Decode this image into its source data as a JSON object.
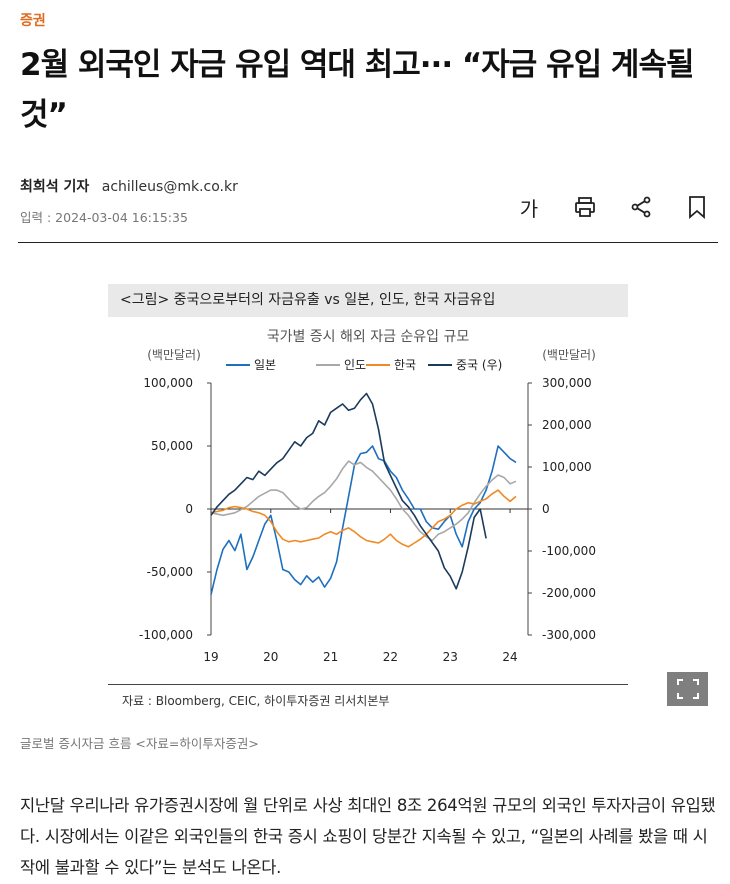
{
  "article": {
    "category": "증권",
    "headline": "2월 외국인 자금 유입 역대 최고··· “자금 유입 계속될 것”",
    "author": "최희석 기자",
    "email": "achilleus@mk.co.kr",
    "date_line": "입력 : 2024-03-04 16:15:35",
    "toolbar": {
      "font_size_label": "가",
      "icons": [
        "print-icon",
        "share-icon",
        "bookmark-icon"
      ]
    },
    "caption": "글로벌 증시자금 흐름 <자료=하이투자증권>",
    "body": "지난달 우리나라 유가증권시장에 월 단위로 사상 최대인 8조 264억원 규모의 외국인 투자자금이 유입됐다. 시장에서는 이같은 외국인들의 한국 증시 쇼핑이 당분간 지속될 수 있고, “일본의 사례를 봤을 때 시작에 불과할 수 있다”는 분석도 나온다."
  },
  "figure": {
    "header": "<그림> 중국으로부터의 자금유출 vs 일본, 인도, 한국 자금유입",
    "source": "자료 : Bloomberg, CEIC, 하이투자증권 리서치본부",
    "expand_icon": "expand-icon"
  },
  "chart_data": {
    "type": "line",
    "title": "국가별 증시 해외 자금 순유입 규모",
    "left_unit": "(백만달러)",
    "right_unit": "(백만달러)",
    "x_ticks": [
      "19",
      "20",
      "21",
      "22",
      "23",
      "24"
    ],
    "xlim": [
      2019,
      2024.3
    ],
    "ylim_left": [
      -100000,
      100000
    ],
    "ylim_right": [
      -300000,
      300000
    ],
    "left_ticks": [
      "100,000",
      "50,000",
      "0",
      "-50,000",
      "-100,000"
    ],
    "right_ticks": [
      "300,000",
      "200,000",
      "100,000",
      "0",
      "-100,000",
      "-200,000",
      "-300,000"
    ],
    "series": [
      {
        "name": "일본",
        "color": "#1f6fbf",
        "axis": "left",
        "x": [
          2019.0,
          2019.1,
          2019.2,
          2019.3,
          2019.4,
          2019.5,
          2019.6,
          2019.7,
          2019.8,
          2019.9,
          2020.0,
          2020.1,
          2020.2,
          2020.3,
          2020.4,
          2020.5,
          2020.6,
          2020.7,
          2020.8,
          2020.9,
          2021.0,
          2021.1,
          2021.2,
          2021.3,
          2021.4,
          2021.5,
          2021.6,
          2021.7,
          2021.8,
          2021.9,
          2022.0,
          2022.1,
          2022.2,
          2022.3,
          2022.4,
          2022.5,
          2022.6,
          2022.7,
          2022.8,
          2022.9,
          2023.0,
          2023.1,
          2023.2,
          2023.3,
          2023.4,
          2023.5,
          2023.6,
          2023.7,
          2023.8,
          2023.9,
          2024.0,
          2024.1
        ],
        "y": [
          -68000,
          -48000,
          -32000,
          -25000,
          -33000,
          -20000,
          -48000,
          -38000,
          -25000,
          -12000,
          -5000,
          -25000,
          -48000,
          -50000,
          -56000,
          -60000,
          -53000,
          -58000,
          -54000,
          -62000,
          -55000,
          -42000,
          -15000,
          10000,
          35000,
          44000,
          45000,
          50000,
          40000,
          38000,
          30000,
          25000,
          15000,
          8000,
          0,
          0,
          -10000,
          -15000,
          -16000,
          -10000,
          -5000,
          -20000,
          -30000,
          -10000,
          0,
          5000,
          15000,
          30000,
          50000,
          45000,
          40000,
          37000
        ]
      },
      {
        "name": "인도",
        "color": "#a8a8a8",
        "axis": "left",
        "x": [
          2019.0,
          2019.2,
          2019.4,
          2019.6,
          2019.8,
          2020.0,
          2020.1,
          2020.2,
          2020.3,
          2020.4,
          2020.5,
          2020.6,
          2020.7,
          2020.8,
          2020.9,
          2021.0,
          2021.1,
          2021.2,
          2021.3,
          2021.4,
          2021.5,
          2021.6,
          2021.7,
          2021.8,
          2021.9,
          2022.0,
          2022.1,
          2022.2,
          2022.3,
          2022.4,
          2022.5,
          2022.6,
          2022.7,
          2022.8,
          2022.9,
          2023.0,
          2023.1,
          2023.2,
          2023.3,
          2023.4,
          2023.5,
          2023.6,
          2023.7,
          2023.8,
          2023.9,
          2024.0,
          2024.1
        ],
        "y": [
          -3000,
          -5000,
          -3000,
          2000,
          10000,
          15000,
          15000,
          13000,
          8000,
          3000,
          0,
          1000,
          6000,
          10000,
          13000,
          18000,
          24000,
          32000,
          38000,
          35000,
          37000,
          33000,
          30000,
          25000,
          20000,
          15000,
          8000,
          0,
          -5000,
          -12000,
          -18000,
          -22000,
          -25000,
          -20000,
          -18000,
          -15000,
          -12000,
          -8000,
          -3000,
          5000,
          12000,
          18000,
          23000,
          27000,
          25000,
          20000,
          22000
        ]
      },
      {
        "name": "한국",
        "color": "#f08a24",
        "axis": "left",
        "x": [
          2019.0,
          2019.1,
          2019.2,
          2019.3,
          2019.4,
          2019.5,
          2019.6,
          2019.7,
          2019.8,
          2019.9,
          2020.0,
          2020.1,
          2020.2,
          2020.3,
          2020.4,
          2020.5,
          2020.6,
          2020.7,
          2020.8,
          2020.9,
          2021.0,
          2021.1,
          2021.2,
          2021.3,
          2021.4,
          2021.5,
          2021.6,
          2021.7,
          2021.8,
          2021.9,
          2022.0,
          2022.1,
          2022.2,
          2022.3,
          2022.4,
          2022.5,
          2022.6,
          2022.7,
          2022.8,
          2022.9,
          2023.0,
          2023.1,
          2023.2,
          2023.3,
          2023.4,
          2023.5,
          2023.6,
          2023.7,
          2023.8,
          2023.9,
          2024.0,
          2024.1
        ],
        "y": [
          -3000,
          -2000,
          -1000,
          1000,
          2000,
          1000,
          0,
          -2000,
          -3000,
          -5000,
          -10000,
          -18000,
          -24000,
          -26000,
          -25000,
          -26000,
          -25000,
          -24000,
          -23000,
          -20000,
          -18000,
          -20000,
          -17000,
          -15000,
          -18000,
          -22000,
          -25000,
          -26000,
          -27000,
          -24000,
          -20000,
          -25000,
          -28000,
          -30000,
          -27000,
          -24000,
          -20000,
          -15000,
          -10000,
          -8000,
          -5000,
          0,
          3000,
          5000,
          4000,
          6000,
          8000,
          12000,
          15000,
          10000,
          6000,
          10000
        ]
      },
      {
        "name": "중국 (우)",
        "color": "#1b3a5c",
        "axis": "right",
        "x": [
          2019.0,
          2019.1,
          2019.2,
          2019.3,
          2019.4,
          2019.5,
          2019.6,
          2019.7,
          2019.8,
          2019.9,
          2020.0,
          2020.1,
          2020.2,
          2020.3,
          2020.4,
          2020.5,
          2020.6,
          2020.7,
          2020.8,
          2020.9,
          2021.0,
          2021.1,
          2021.2,
          2021.3,
          2021.4,
          2021.5,
          2021.6,
          2021.7,
          2021.8,
          2021.9,
          2022.0,
          2022.1,
          2022.2,
          2022.3,
          2022.4,
          2022.5,
          2022.6,
          2022.7,
          2022.8,
          2022.9,
          2023.0,
          2023.1,
          2023.2,
          2023.3,
          2023.4,
          2023.5,
          2023.6
        ],
        "y": [
          -15000,
          5000,
          20000,
          35000,
          45000,
          60000,
          75000,
          70000,
          90000,
          80000,
          95000,
          110000,
          120000,
          140000,
          160000,
          150000,
          170000,
          180000,
          210000,
          200000,
          230000,
          240000,
          250000,
          235000,
          240000,
          260000,
          275000,
          250000,
          190000,
          110000,
          80000,
          50000,
          20000,
          5000,
          -15000,
          -40000,
          -60000,
          -80000,
          -100000,
          -140000,
          -160000,
          -190000,
          -150000,
          -90000,
          -20000,
          0,
          -70000
        ]
      }
    ]
  }
}
